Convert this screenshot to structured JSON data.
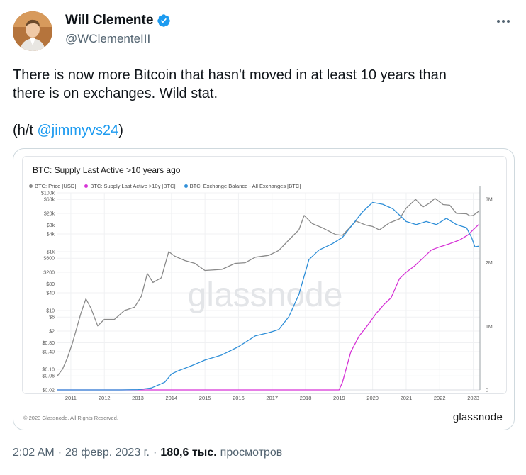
{
  "author": {
    "name": "Will Clemente",
    "handle": "@WClementeIII"
  },
  "tweet": {
    "line1": "There is now more Bitcoin that hasn't moved in at least 10 years than",
    "line2": "there is on exchanges. Wild stat.",
    "ht_prefix": "(h/t ",
    "ht_mention": "@jimmyvs24",
    "ht_suffix": ")"
  },
  "card": {
    "copyright": "© 2023 Glassnode. All Rights Reserved.",
    "brand": "glassnode",
    "watermark": "glassnode"
  },
  "meta": {
    "time": "2:02 AM",
    "sep1": "·",
    "date": "28 февр. 2023 г.",
    "sep2": "·",
    "views_count": "180,6 тыс.",
    "views_label": "просмотров"
  },
  "colors": {
    "price": "#8a8a8a",
    "supply10y": "#d633d6",
    "exchange": "#2f8fd8",
    "verified": "#1d9bf0",
    "mention": "#1d9bf0"
  },
  "chart_data": {
    "type": "line",
    "title": "BTC: Supply Last Active >10 years ago",
    "x_ticks": [
      "2011",
      "2012",
      "2013",
      "2014",
      "2015",
      "2016",
      "2017",
      "2018",
      "2019",
      "2020",
      "2021",
      "2022",
      "2023"
    ],
    "x_range": [
      2010.6,
      2023.2
    ],
    "y_left_ticks": [
      {
        "label": "$100k",
        "value": 100000
      },
      {
        "label": "$60k",
        "value": 60000
      },
      {
        "label": "$20k",
        "value": 20000
      },
      {
        "label": "$8k",
        "value": 8000
      },
      {
        "label": "$4k",
        "value": 4000
      },
      {
        "label": "$1k",
        "value": 1000
      },
      {
        "label": "$600",
        "value": 600
      },
      {
        "label": "$200",
        "value": 200
      },
      {
        "label": "$80",
        "value": 80
      },
      {
        "label": "$40",
        "value": 40
      },
      {
        "label": "$10",
        "value": 10
      },
      {
        "label": "$6",
        "value": 6
      },
      {
        "label": "$2",
        "value": 2
      },
      {
        "label": "$0.80",
        "value": 0.8
      },
      {
        "label": "$0.40",
        "value": 0.4
      },
      {
        "label": "$0.10",
        "value": 0.1
      },
      {
        "label": "$0.06",
        "value": 0.06
      },
      {
        "label": "$0.02",
        "value": 0.02
      }
    ],
    "y_left_scale": "log",
    "y_left_range": [
      0.02,
      100000
    ],
    "y_right_ticks": [
      {
        "label": "3M",
        "value": 3000000
      },
      {
        "label": "2M",
        "value": 2000000
      },
      {
        "label": "1M",
        "value": 1000000
      },
      {
        "label": "0",
        "value": 0
      }
    ],
    "y_right_range": [
      0,
      3100000
    ],
    "series": [
      {
        "name": "BTC: Price [USD]",
        "axis": "left",
        "color": "#8a8a8a",
        "points": [
          [
            2010.6,
            0.06
          ],
          [
            2010.75,
            0.1
          ],
          [
            2010.9,
            0.25
          ],
          [
            2011.05,
            0.8
          ],
          [
            2011.3,
            8
          ],
          [
            2011.45,
            25
          ],
          [
            2011.6,
            12
          ],
          [
            2011.8,
            3
          ],
          [
            2012.0,
            5
          ],
          [
            2012.3,
            5
          ],
          [
            2012.6,
            10
          ],
          [
            2012.9,
            13
          ],
          [
            2013.1,
            30
          ],
          [
            2013.28,
            180
          ],
          [
            2013.45,
            90
          ],
          [
            2013.7,
            130
          ],
          [
            2013.92,
            1000
          ],
          [
            2014.1,
            700
          ],
          [
            2014.4,
            500
          ],
          [
            2014.7,
            400
          ],
          [
            2015.0,
            230
          ],
          [
            2015.5,
            250
          ],
          [
            2015.9,
            400
          ],
          [
            2016.2,
            420
          ],
          [
            2016.5,
            650
          ],
          [
            2016.9,
            750
          ],
          [
            2017.2,
            1100
          ],
          [
            2017.5,
            2500
          ],
          [
            2017.8,
            5500
          ],
          [
            2017.96,
            17000
          ],
          [
            2018.2,
            9000
          ],
          [
            2018.5,
            6500
          ],
          [
            2018.9,
            3800
          ],
          [
            2019.1,
            3600
          ],
          [
            2019.5,
            11000
          ],
          [
            2019.8,
            8000
          ],
          [
            2020.0,
            7200
          ],
          [
            2020.2,
            5500
          ],
          [
            2020.5,
            9500
          ],
          [
            2020.8,
            13000
          ],
          [
            2021.0,
            30000
          ],
          [
            2021.28,
            60000
          ],
          [
            2021.5,
            33000
          ],
          [
            2021.7,
            45000
          ],
          [
            2021.86,
            65000
          ],
          [
            2022.1,
            40000
          ],
          [
            2022.3,
            38000
          ],
          [
            2022.5,
            20000
          ],
          [
            2022.8,
            19500
          ],
          [
            2022.9,
            16500
          ],
          [
            2023.0,
            17000
          ],
          [
            2023.16,
            23500
          ]
        ]
      },
      {
        "name": "BTC: Supply Last Active >10y [BTC]",
        "axis": "right",
        "color": "#d633d6",
        "points": [
          [
            2010.6,
            0
          ],
          [
            2019.0,
            0
          ],
          [
            2019.1,
            120000
          ],
          [
            2019.35,
            600000
          ],
          [
            2019.6,
            850000
          ],
          [
            2019.9,
            1050000
          ],
          [
            2020.1,
            1200000
          ],
          [
            2020.35,
            1350000
          ],
          [
            2020.55,
            1450000
          ],
          [
            2020.8,
            1750000
          ],
          [
            2021.0,
            1850000
          ],
          [
            2021.25,
            1950000
          ],
          [
            2021.55,
            2100000
          ],
          [
            2021.75,
            2200000
          ],
          [
            2022.0,
            2250000
          ],
          [
            2022.3,
            2300000
          ],
          [
            2022.6,
            2360000
          ],
          [
            2022.85,
            2440000
          ],
          [
            2023.0,
            2520000
          ],
          [
            2023.16,
            2600000
          ]
        ]
      },
      {
        "name": "BTC: Exchange Balance - All Exchanges [BTC]",
        "axis": "right",
        "color": "#2f8fd8",
        "points": [
          [
            2010.6,
            0
          ],
          [
            2012.5,
            0
          ],
          [
            2013.0,
            5000
          ],
          [
            2013.4,
            30000
          ],
          [
            2013.8,
            120000
          ],
          [
            2014.0,
            250000
          ],
          [
            2014.2,
            300000
          ],
          [
            2014.6,
            380000
          ],
          [
            2015.0,
            470000
          ],
          [
            2015.5,
            550000
          ],
          [
            2016.0,
            680000
          ],
          [
            2016.5,
            850000
          ],
          [
            2016.9,
            900000
          ],
          [
            2017.2,
            950000
          ],
          [
            2017.5,
            1150000
          ],
          [
            2017.8,
            1500000
          ],
          [
            2018.1,
            2050000
          ],
          [
            2018.4,
            2200000
          ],
          [
            2018.8,
            2300000
          ],
          [
            2019.1,
            2400000
          ],
          [
            2019.4,
            2600000
          ],
          [
            2019.7,
            2800000
          ],
          [
            2020.0,
            2950000
          ],
          [
            2020.3,
            2920000
          ],
          [
            2020.6,
            2850000
          ],
          [
            2020.8,
            2750000
          ],
          [
            2021.0,
            2650000
          ],
          [
            2021.3,
            2600000
          ],
          [
            2021.6,
            2650000
          ],
          [
            2021.9,
            2600000
          ],
          [
            2022.2,
            2700000
          ],
          [
            2022.5,
            2600000
          ],
          [
            2022.8,
            2550000
          ],
          [
            2022.95,
            2400000
          ],
          [
            2023.05,
            2250000
          ],
          [
            2023.16,
            2260000
          ]
        ]
      }
    ]
  }
}
